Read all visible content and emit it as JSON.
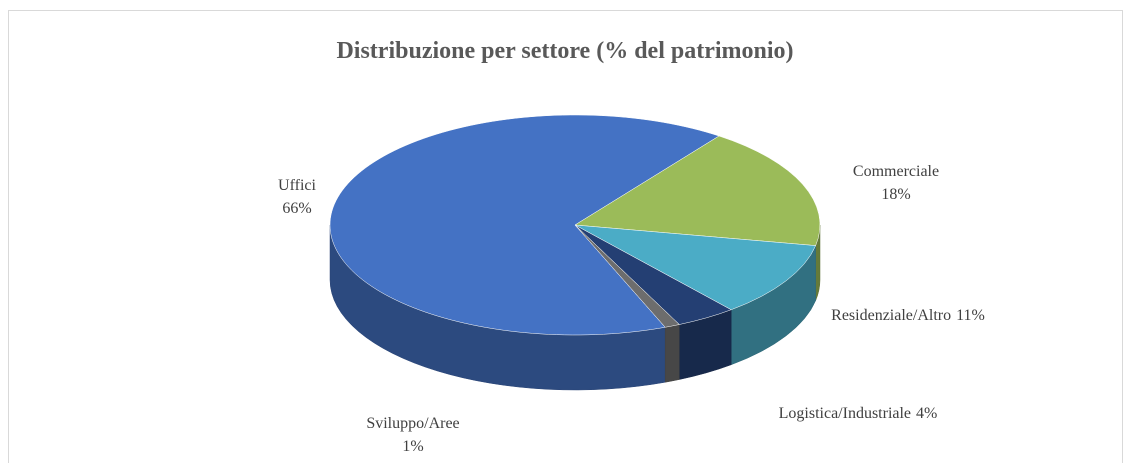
{
  "chart_data": {
    "type": "pie3d",
    "title": "Distribuzione per settore (% del patrimonio)",
    "categories": [
      "Uffici",
      "Commerciale",
      "Residenziale/Altro",
      "Logistica/Industriale",
      "Sviluppo/Aree"
    ],
    "values": [
      66,
      18,
      11,
      4,
      1
    ],
    "value_labels": [
      "66%",
      "18%",
      "11%",
      "4%",
      "1%"
    ],
    "colors": [
      "#4472c4",
      "#9bbb59",
      "#4bacc6",
      "#243f73",
      "#6d6d6d"
    ]
  }
}
